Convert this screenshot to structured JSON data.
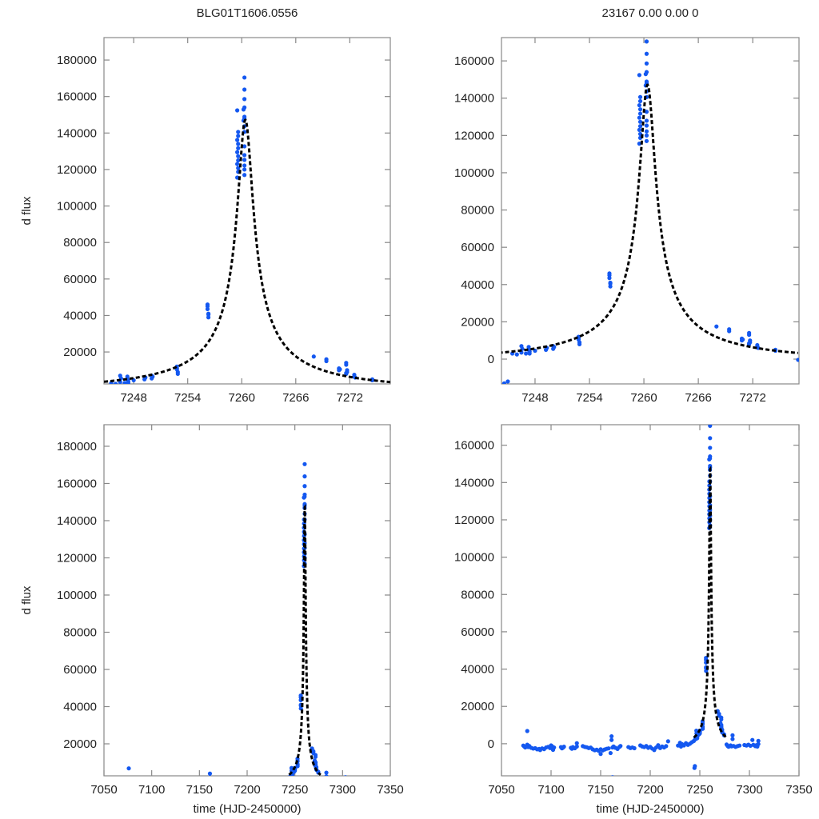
{
  "chart_data": {
    "type": "scatter",
    "colors": {
      "points": "#1458f0",
      "model": "#000000",
      "frame": "#888888"
    },
    "model": {
      "kind": "point-lens microlensing fit",
      "t0": 7260.4,
      "u0": 0.028,
      "tE": 30,
      "fs": 4267,
      "fb": -1000,
      "t_range": [
        7244,
        7277
      ]
    },
    "panels": [
      {
        "id": "top-left",
        "title": "BLG01T1606.0556",
        "xlabel": "",
        "ylabel": "d flux",
        "xlim": [
          7244.7,
          7276.5
        ],
        "ylim": [
          2500,
          192300
        ],
        "xticks": [
          7248,
          7254,
          7260,
          7266,
          7272
        ],
        "xtick_labels": [
          "7248",
          "7254",
          "7260",
          "7266",
          "7272"
        ],
        "yticks": [
          20000,
          40000,
          60000,
          80000,
          100000,
          120000,
          140000,
          160000,
          180000
        ],
        "ytick_labels": [
          "20000",
          "40000",
          "60000",
          "80000",
          "100000",
          "120000",
          "140000",
          "160000",
          "180000"
        ]
      },
      {
        "id": "top-right",
        "title": "23167  0.00  0.00  0",
        "xlabel": "",
        "ylabel": "",
        "xlim": [
          7244.3,
          7277.1
        ],
        "ylim": [
          -13300,
          172500
        ],
        "xticks": [
          7248,
          7254,
          7260,
          7266,
          7272
        ],
        "xtick_labels": [
          "7248",
          "7254",
          "7260",
          "7266",
          "7272"
        ],
        "yticks": [
          0,
          20000,
          40000,
          60000,
          80000,
          100000,
          120000,
          140000,
          160000
        ],
        "ytick_labels": [
          "0",
          "20000",
          "40000",
          "60000",
          "80000",
          "100000",
          "120000",
          "140000",
          "160000"
        ]
      },
      {
        "id": "bottom-left",
        "title": "",
        "xlabel": "time (HJD-2450000)",
        "ylabel": "d flux",
        "xlim": [
          7050,
          7350
        ],
        "ylim": [
          2800,
          191600
        ],
        "xticks": [
          7050,
          7100,
          7150,
          7200,
          7250,
          7300,
          7350
        ],
        "xtick_labels": [
          "7050",
          "7100",
          "7150",
          "7200",
          "7250",
          "7300",
          "7350"
        ],
        "yticks": [
          20000,
          40000,
          60000,
          80000,
          100000,
          120000,
          140000,
          160000,
          180000
        ],
        "ytick_labels": [
          "20000",
          "40000",
          "60000",
          "80000",
          "100000",
          "120000",
          "140000",
          "160000",
          "180000"
        ]
      },
      {
        "id": "bottom-right",
        "title": "",
        "xlabel": "time (HJD-2450000)",
        "ylabel": "",
        "xlim": [
          7050,
          7350
        ],
        "ylim": [
          -17200,
          171000
        ],
        "xticks": [
          7050,
          7100,
          7150,
          7200,
          7250,
          7300,
          7350
        ],
        "xtick_labels": [
          "7050",
          "7100",
          "7150",
          "7200",
          "7250",
          "7300",
          "7350"
        ],
        "yticks": [
          0,
          20000,
          40000,
          60000,
          80000,
          100000,
          120000,
          140000,
          160000
        ],
        "ytick_labels": [
          "0",
          "20000",
          "40000",
          "60000",
          "80000",
          "100000",
          "120000",
          "140000",
          "160000"
        ]
      }
    ],
    "points": [
      [
        7244.6,
        -13000
      ],
      [
        7245.5,
        3000
      ],
      [
        7246.5,
        7000
      ],
      [
        7246.5,
        3500
      ],
      [
        7246.6,
        5500
      ],
      [
        7247.3,
        6500
      ],
      [
        7247.3,
        5000
      ],
      [
        7247.4,
        4000
      ],
      [
        7247.4,
        3000
      ],
      [
        7249.2,
        5000
      ],
      [
        7249.3,
        6000
      ],
      [
        7250.0,
        7000
      ],
      [
        7250.0,
        5500
      ],
      [
        7250.1,
        6500
      ],
      [
        7252.8,
        12000
      ],
      [
        7252.8,
        10500
      ],
      [
        7252.9,
        9000
      ],
      [
        7252.9,
        8000
      ],
      [
        7252.8,
        11000
      ],
      [
        7256.2,
        46000
      ],
      [
        7256.2,
        43500
      ],
      [
        7256.3,
        41000
      ],
      [
        7256.3,
        39000
      ],
      [
        7256.2,
        45000
      ],
      [
        7256.3,
        40500
      ],
      [
        7259.5,
        152400
      ],
      [
        7259.6,
        140600
      ],
      [
        7259.6,
        138400
      ],
      [
        7259.5,
        136200
      ],
      [
        7259.6,
        134000
      ],
      [
        7259.6,
        131700
      ],
      [
        7259.5,
        129500
      ],
      [
        7259.6,
        127300
      ],
      [
        7259.6,
        125000
      ],
      [
        7259.5,
        123000
      ],
      [
        7259.6,
        120800
      ],
      [
        7259.6,
        118700
      ],
      [
        7259.5,
        115600
      ],
      [
        7260.3,
        170400
      ],
      [
        7260.3,
        163800
      ],
      [
        7260.3,
        158600
      ],
      [
        7260.3,
        154000
      ],
      [
        7260.2,
        152900
      ],
      [
        7260.3,
        148900
      ],
      [
        7260.3,
        148000
      ],
      [
        7260.2,
        146800
      ],
      [
        7260.3,
        143700
      ],
      [
        7260.3,
        140600
      ],
      [
        7260.3,
        132700
      ],
      [
        7260.3,
        127900
      ],
      [
        7260.3,
        125300
      ],
      [
        7260.3,
        122200
      ],
      [
        7260.3,
        120000
      ],
      [
        7260.3,
        117000
      ],
      [
        7268.0,
        17500
      ],
      [
        7269.4,
        16000
      ],
      [
        7269.4,
        15000
      ],
      [
        7270.8,
        11000
      ],
      [
        7270.8,
        10000
      ],
      [
        7270.9,
        10500
      ],
      [
        7271.6,
        14000
      ],
      [
        7271.6,
        13000
      ],
      [
        7271.7,
        10000
      ],
      [
        7271.6,
        8500
      ],
      [
        7271.7,
        9000
      ],
      [
        7271.6,
        8000
      ],
      [
        7272.5,
        7500
      ],
      [
        7272.5,
        6500
      ],
      [
        7272.6,
        6000
      ],
      [
        7274.5,
        5000
      ],
      [
        7274.5,
        4500
      ],
      [
        7072,
        -1000
      ],
      [
        7073,
        -1500
      ],
      [
        7074,
        -2000
      ],
      [
        7076,
        6800
      ],
      [
        7076,
        -500
      ],
      [
        7077,
        -1800
      ],
      [
        7078,
        -1200
      ],
      [
        7080,
        -2200
      ],
      [
        7082,
        -2600
      ],
      [
        7084,
        -2400
      ],
      [
        7086,
        -3000
      ],
      [
        7088,
        -2800
      ],
      [
        7089,
        -3400
      ],
      [
        7091,
        -2500
      ],
      [
        7093,
        -2900
      ],
      [
        7095,
        -2000
      ],
      [
        7097,
        -1700
      ],
      [
        7099,
        -2300
      ],
      [
        7100,
        -900
      ],
      [
        7101,
        -1400
      ],
      [
        7102,
        -3300
      ],
      [
        7103,
        -2000
      ],
      [
        7110,
        -1800
      ],
      [
        7111,
        -2500
      ],
      [
        7112,
        -2100
      ],
      [
        7113,
        -1600
      ],
      [
        7120,
        -2200
      ],
      [
        7121,
        -2700
      ],
      [
        7122,
        -1800
      ],
      [
        7124,
        -2400
      ],
      [
        7126,
        300
      ],
      [
        7126,
        -1500
      ],
      [
        7132,
        -1300
      ],
      [
        7134,
        -1700
      ],
      [
        7136,
        -1900
      ],
      [
        7138,
        -2300
      ],
      [
        7140,
        -2100
      ],
      [
        7142,
        -3000
      ],
      [
        7144,
        -3500
      ],
      [
        7146,
        -3200
      ],
      [
        7148,
        -3800
      ],
      [
        7150,
        -5500
      ],
      [
        7150,
        -3000
      ],
      [
        7152,
        -3600
      ],
      [
        7154,
        -3100
      ],
      [
        7156,
        -2700
      ],
      [
        7158,
        -2500
      ],
      [
        7160,
        -5000
      ],
      [
        7161,
        4000
      ],
      [
        7161,
        2000
      ],
      [
        7162,
        -18000
      ],
      [
        7162,
        -2000
      ],
      [
        7163,
        -1500
      ],
      [
        7165,
        -2200
      ],
      [
        7167,
        -2800
      ],
      [
        7169,
        -1700
      ],
      [
        7170,
        -1200
      ],
      [
        7178,
        -1800
      ],
      [
        7180,
        -2300
      ],
      [
        7182,
        -2000
      ],
      [
        7184,
        -2400
      ],
      [
        7190,
        -900
      ],
      [
        7192,
        -1500
      ],
      [
        7194,
        -1800
      ],
      [
        7196,
        -1200
      ],
      [
        7198,
        -2200
      ],
      [
        7200,
        -1700
      ],
      [
        7202,
        -2600
      ],
      [
        7204,
        -3400
      ],
      [
        7206,
        -2000
      ],
      [
        7208,
        -800
      ],
      [
        7210,
        -2300
      ],
      [
        7212,
        -1500
      ],
      [
        7214,
        -2000
      ],
      [
        7216,
        -1300
      ],
      [
        7218,
        1300
      ],
      [
        7228,
        -1000
      ],
      [
        7230,
        500
      ],
      [
        7231,
        -1500
      ],
      [
        7232,
        -200
      ],
      [
        7234,
        -900
      ],
      [
        7236,
        300
      ],
      [
        7238,
        -600
      ],
      [
        7240,
        0
      ],
      [
        7242,
        800
      ],
      [
        7244,
        1500
      ],
      [
        7245,
        -12000
      ],
      [
        7246,
        2500
      ],
      [
        7247,
        3000
      ],
      [
        7248,
        4500
      ],
      [
        7277,
        -400
      ],
      [
        7278,
        -1200
      ],
      [
        7279,
        -1600
      ],
      [
        7281,
        -900
      ],
      [
        7282,
        -1400
      ],
      [
        7283,
        4500
      ],
      [
        7283,
        2500
      ],
      [
        7284,
        -1200
      ],
      [
        7286,
        -1700
      ],
      [
        7288,
        -1300
      ],
      [
        7290,
        -1000
      ],
      [
        7295,
        -700
      ],
      [
        7297,
        -1000
      ],
      [
        7299,
        -500
      ],
      [
        7301,
        -1100
      ],
      [
        7303,
        2000
      ],
      [
        7304,
        -600
      ],
      [
        7306,
        -1300
      ],
      [
        7307,
        -800
      ],
      [
        7308,
        -1500
      ],
      [
        7309,
        -200
      ],
      [
        7309,
        1500
      ]
    ]
  }
}
